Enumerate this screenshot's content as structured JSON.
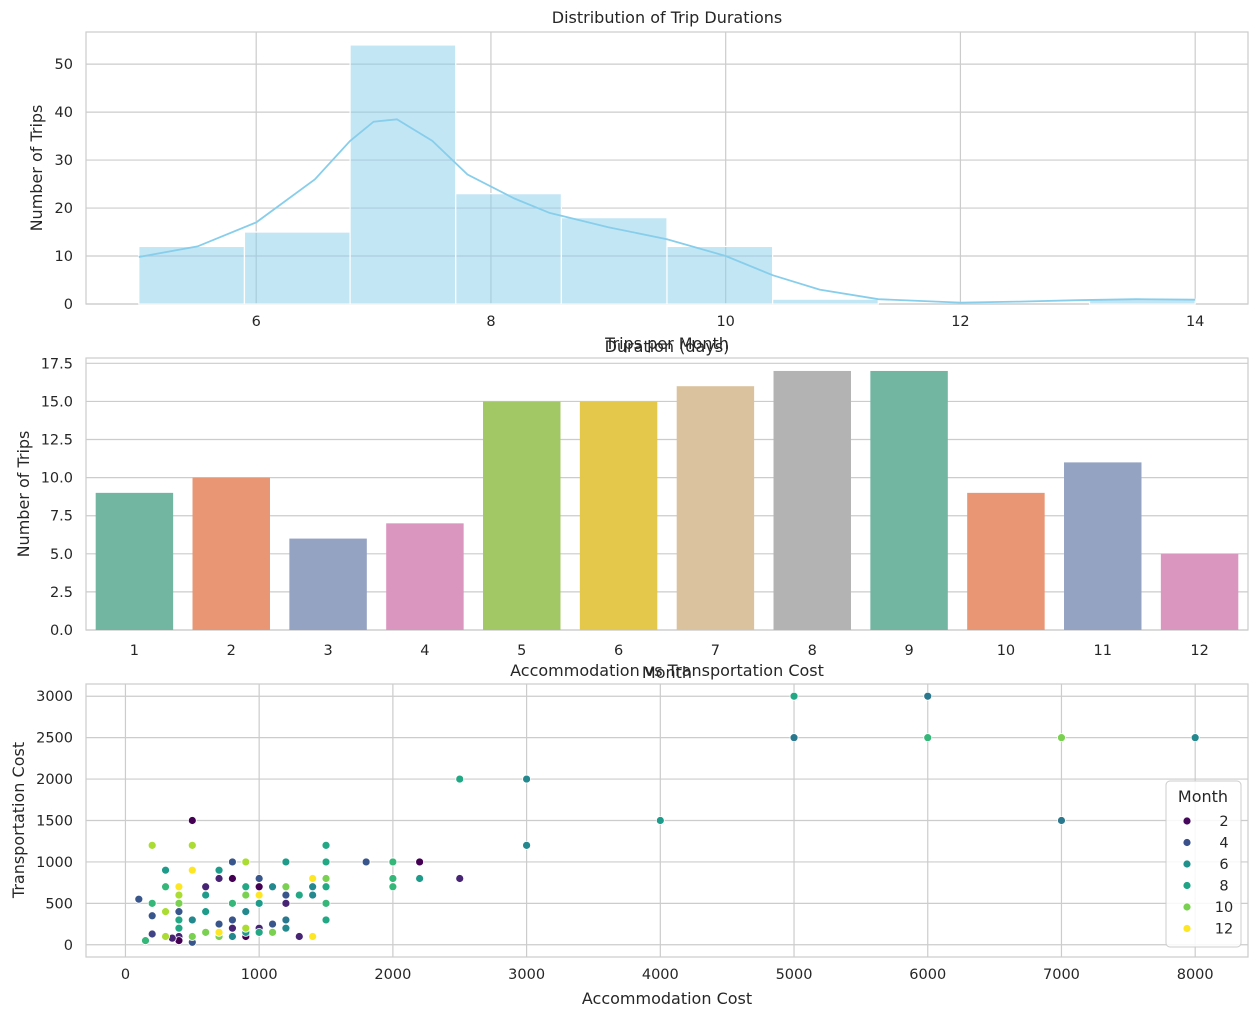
{
  "chart_data": [
    {
      "type": "histogram",
      "title": "Distribution of Trip Durations",
      "xlabel": "Duration (days)",
      "ylabel": "Number of Trips",
      "xlim": [
        4.55,
        14.45
      ],
      "ylim": [
        0,
        56.7
      ],
      "xticks": [
        6,
        8,
        10,
        12,
        14
      ],
      "yticks": [
        0,
        10,
        20,
        30,
        40,
        50
      ],
      "bar_color": "#87ceeb",
      "kde_color": "#87ceeb",
      "bins": [
        {
          "x0": 5.0,
          "x1": 5.9,
          "count": 12
        },
        {
          "x0": 5.9,
          "x1": 6.8,
          "count": 15
        },
        {
          "x0": 6.8,
          "x1": 7.7,
          "count": 54
        },
        {
          "x0": 7.7,
          "x1": 8.6,
          "count": 23
        },
        {
          "x0": 8.6,
          "x1": 9.5,
          "count": 18
        },
        {
          "x0": 9.5,
          "x1": 10.4,
          "count": 12
        },
        {
          "x0": 10.4,
          "x1": 11.3,
          "count": 1
        },
        {
          "x0": 11.3,
          "x1": 12.2,
          "count": 0
        },
        {
          "x0": 12.2,
          "x1": 13.1,
          "count": 0
        },
        {
          "x0": 13.1,
          "x1": 14.0,
          "count": 1
        }
      ],
      "kde": [
        [
          5.0,
          9.8
        ],
        [
          5.5,
          12.0
        ],
        [
          6.0,
          17.0
        ],
        [
          6.5,
          26.0
        ],
        [
          6.8,
          34.0
        ],
        [
          7.0,
          38.0
        ],
        [
          7.2,
          38.5
        ],
        [
          7.5,
          34.0
        ],
        [
          7.8,
          27.0
        ],
        [
          8.2,
          22.0
        ],
        [
          8.5,
          19.0
        ],
        [
          9.0,
          16.0
        ],
        [
          9.5,
          13.5
        ],
        [
          10.0,
          10.0
        ],
        [
          10.4,
          6.0
        ],
        [
          10.8,
          3.0
        ],
        [
          11.3,
          1.0
        ],
        [
          12.0,
          0.3
        ],
        [
          12.5,
          0.5
        ],
        [
          13.0,
          0.8
        ],
        [
          13.5,
          1.0
        ],
        [
          14.0,
          0.9
        ]
      ]
    },
    {
      "type": "bar",
      "title": "Trips per Month",
      "xlabel": "Month",
      "ylabel": "Number of Trips",
      "ylim": [
        0,
        17.85
      ],
      "yticks": [
        "0.0",
        "2.5",
        "5.0",
        "7.5",
        "10.0",
        "12.5",
        "15.0",
        "17.5"
      ],
      "categories": [
        "1",
        "2",
        "3",
        "4",
        "5",
        "6",
        "7",
        "8",
        "9",
        "10",
        "11",
        "12"
      ],
      "values": [
        9,
        10,
        6,
        7,
        15,
        15,
        16,
        17,
        17,
        9,
        11,
        5
      ],
      "colors": [
        "#72b6a1",
        "#e99675",
        "#95a3c3",
        "#db96c0",
        "#a2c865",
        "#e3c84b",
        "#dbc29e",
        "#b3b3b3",
        "#72b6a1",
        "#e99675",
        "#95a3c3",
        "#db96c0"
      ]
    },
    {
      "type": "scatter",
      "title": "Accommodation vs Transportation Cost",
      "xlabel": "Accommodation Cost",
      "ylabel": "Transportation Cost",
      "xlim": [
        -295,
        8395
      ],
      "ylim": [
        -147.5,
        3147.5
      ],
      "xticks": [
        0,
        1000,
        2000,
        3000,
        4000,
        5000,
        6000,
        7000,
        8000
      ],
      "yticks": [
        0,
        500,
        1000,
        1500,
        2000,
        2500,
        3000
      ],
      "legend": {
        "title": "Month",
        "placement": "center-right",
        "entries": [
          {
            "label": "2",
            "color": "#46085c"
          },
          {
            "label": "4",
            "color": "#3b518b"
          },
          {
            "label": "6",
            "color": "#21918c"
          },
          {
            "label": "8",
            "color": "#20a486"
          },
          {
            "label": "10",
            "color": "#7ad151"
          },
          {
            "label": "12",
            "color": "#fde725"
          }
        ]
      },
      "points": [
        {
          "x": 500,
          "y": 1500,
          "m": 1
        },
        {
          "x": 800,
          "y": 800,
          "m": 1
        },
        {
          "x": 2200,
          "y": 1000,
          "m": 1
        },
        {
          "x": 2500,
          "y": 800,
          "m": 2
        },
        {
          "x": 1000,
          "y": 700,
          "m": 1
        },
        {
          "x": 600,
          "y": 700,
          "m": 2
        },
        {
          "x": 1200,
          "y": 500,
          "m": 2
        },
        {
          "x": 900,
          "y": 100,
          "m": 1
        },
        {
          "x": 700,
          "y": 800,
          "m": 2
        },
        {
          "x": 400,
          "y": 100,
          "m": 2
        },
        {
          "x": 400,
          "y": 50,
          "m": 1
        },
        {
          "x": 350,
          "y": 80,
          "m": 2
        },
        {
          "x": 200,
          "y": 130,
          "m": 3
        },
        {
          "x": 1000,
          "y": 200,
          "m": 2
        },
        {
          "x": 1300,
          "y": 100,
          "m": 2
        },
        {
          "x": 800,
          "y": 200,
          "m": 2
        },
        {
          "x": 1000,
          "y": 800,
          "m": 4
        },
        {
          "x": 800,
          "y": 1000,
          "m": 4
        },
        {
          "x": 1800,
          "y": 1000,
          "m": 4
        },
        {
          "x": 1200,
          "y": 600,
          "m": 4
        },
        {
          "x": 100,
          "y": 550,
          "m": 4
        },
        {
          "x": 200,
          "y": 350,
          "m": 4
        },
        {
          "x": 400,
          "y": 400,
          "m": 4
        },
        {
          "x": 500,
          "y": 30,
          "m": 4
        },
        {
          "x": 700,
          "y": 250,
          "m": 4
        },
        {
          "x": 900,
          "y": 700,
          "m": 5
        },
        {
          "x": 1100,
          "y": 250,
          "m": 4
        },
        {
          "x": 1200,
          "y": 300,
          "m": 5
        },
        {
          "x": 800,
          "y": 300,
          "m": 4
        },
        {
          "x": 5000,
          "y": 2500,
          "m": 5
        },
        {
          "x": 6000,
          "y": 3000,
          "m": 5
        },
        {
          "x": 7000,
          "y": 1500,
          "m": 5
        },
        {
          "x": 3000,
          "y": 2000,
          "m": 6
        },
        {
          "x": 8000,
          "y": 2500,
          "m": 6
        },
        {
          "x": 4000,
          "y": 1500,
          "m": 7
        },
        {
          "x": 3000,
          "y": 1200,
          "m": 6
        },
        {
          "x": 2200,
          "y": 800,
          "m": 7
        },
        {
          "x": 1400,
          "y": 700,
          "m": 6
        },
        {
          "x": 1100,
          "y": 700,
          "m": 6
        },
        {
          "x": 500,
          "y": 300,
          "m": 6
        },
        {
          "x": 900,
          "y": 400,
          "m": 6
        },
        {
          "x": 1400,
          "y": 600,
          "m": 6
        },
        {
          "x": 800,
          "y": 100,
          "m": 6
        },
        {
          "x": 1200,
          "y": 200,
          "m": 6
        },
        {
          "x": 300,
          "y": 900,
          "m": 7
        },
        {
          "x": 600,
          "y": 600,
          "m": 7
        },
        {
          "x": 1200,
          "y": 1000,
          "m": 7
        },
        {
          "x": 1000,
          "y": 500,
          "m": 7
        },
        {
          "x": 600,
          "y": 400,
          "m": 7
        },
        {
          "x": 900,
          "y": 150,
          "m": 7
        },
        {
          "x": 700,
          "y": 900,
          "m": 7
        },
        {
          "x": 5000,
          "y": 3000,
          "m": 8
        },
        {
          "x": 2500,
          "y": 2000,
          "m": 8
        },
        {
          "x": 1500,
          "y": 1200,
          "m": 8
        },
        {
          "x": 1500,
          "y": 1000,
          "m": 8
        },
        {
          "x": 1500,
          "y": 300,
          "m": 8
        },
        {
          "x": 1300,
          "y": 600,
          "m": 8
        },
        {
          "x": 400,
          "y": 300,
          "m": 8
        },
        {
          "x": 900,
          "y": 700,
          "m": 8
        },
        {
          "x": 1500,
          "y": 700,
          "m": 8
        },
        {
          "x": 1000,
          "y": 150,
          "m": 8
        },
        {
          "x": 400,
          "y": 200,
          "m": 8
        },
        {
          "x": 6000,
          "y": 2500,
          "m": 9
        },
        {
          "x": 7000,
          "y": 2500,
          "m": 10
        },
        {
          "x": 2000,
          "y": 1000,
          "m": 9
        },
        {
          "x": 2000,
          "y": 800,
          "m": 9
        },
        {
          "x": 2000,
          "y": 700,
          "m": 9
        },
        {
          "x": 1500,
          "y": 500,
          "m": 9
        },
        {
          "x": 800,
          "y": 500,
          "m": 9
        },
        {
          "x": 1200,
          "y": 700,
          "m": 10
        },
        {
          "x": 1500,
          "y": 800,
          "m": 10
        },
        {
          "x": 200,
          "y": 500,
          "m": 9
        },
        {
          "x": 300,
          "y": 700,
          "m": 9
        },
        {
          "x": 150,
          "y": 50,
          "m": 9
        },
        {
          "x": 600,
          "y": 150,
          "m": 10
        },
        {
          "x": 700,
          "y": 100,
          "m": 10
        },
        {
          "x": 900,
          "y": 600,
          "m": 10
        },
        {
          "x": 1100,
          "y": 150,
          "m": 10
        },
        {
          "x": 500,
          "y": 100,
          "m": 10
        },
        {
          "x": 400,
          "y": 500,
          "m": 10
        },
        {
          "x": 200,
          "y": 1200,
          "m": 11
        },
        {
          "x": 500,
          "y": 1200,
          "m": 11
        },
        {
          "x": 900,
          "y": 1000,
          "m": 11
        },
        {
          "x": 300,
          "y": 400,
          "m": 11
        },
        {
          "x": 400,
          "y": 600,
          "m": 11
        },
        {
          "x": 300,
          "y": 100,
          "m": 11
        },
        {
          "x": 900,
          "y": 200,
          "m": 11
        },
        {
          "x": 1000,
          "y": 600,
          "m": 12
        },
        {
          "x": 1400,
          "y": 800,
          "m": 12
        },
        {
          "x": 1400,
          "y": 100,
          "m": 12
        },
        {
          "x": 500,
          "y": 900,
          "m": 12
        },
        {
          "x": 400,
          "y": 700,
          "m": 12
        },
        {
          "x": 700,
          "y": 150,
          "m": 12
        }
      ]
    }
  ]
}
